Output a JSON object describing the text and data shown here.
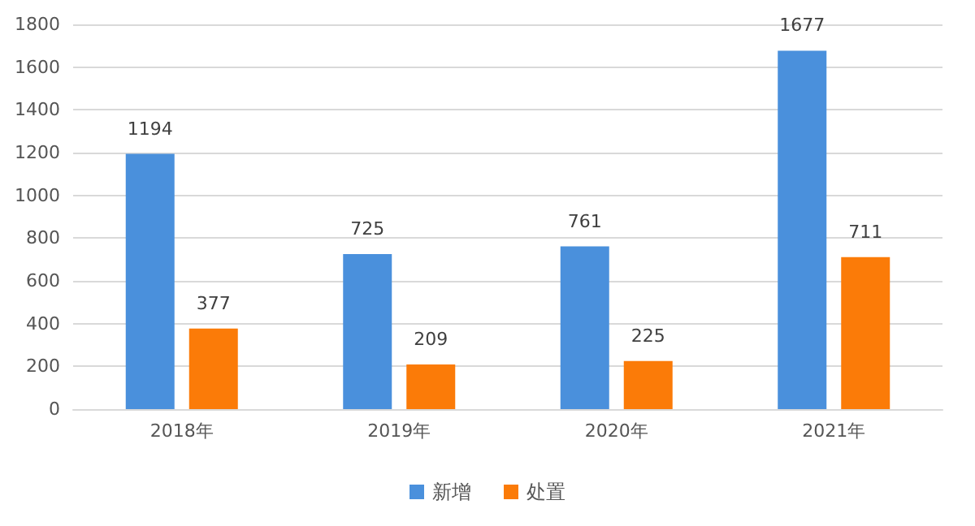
{
  "chart_data": {
    "type": "bar",
    "categories": [
      "2018年",
      "2019年",
      "2020年",
      "2021年"
    ],
    "series": [
      {
        "name": "新增",
        "color": "#4a90dc",
        "values": [
          1194,
          725,
          761,
          1677
        ]
      },
      {
        "name": "处置",
        "color": "#fb7b08",
        "values": [
          377,
          209,
          225,
          711
        ]
      }
    ],
    "ylim": [
      0,
      1800
    ],
    "yticks": [
      0,
      200,
      400,
      600,
      800,
      1000,
      1200,
      1400,
      1600,
      1800
    ],
    "grid": "y",
    "legend": "bottom",
    "data_labels": true
  }
}
